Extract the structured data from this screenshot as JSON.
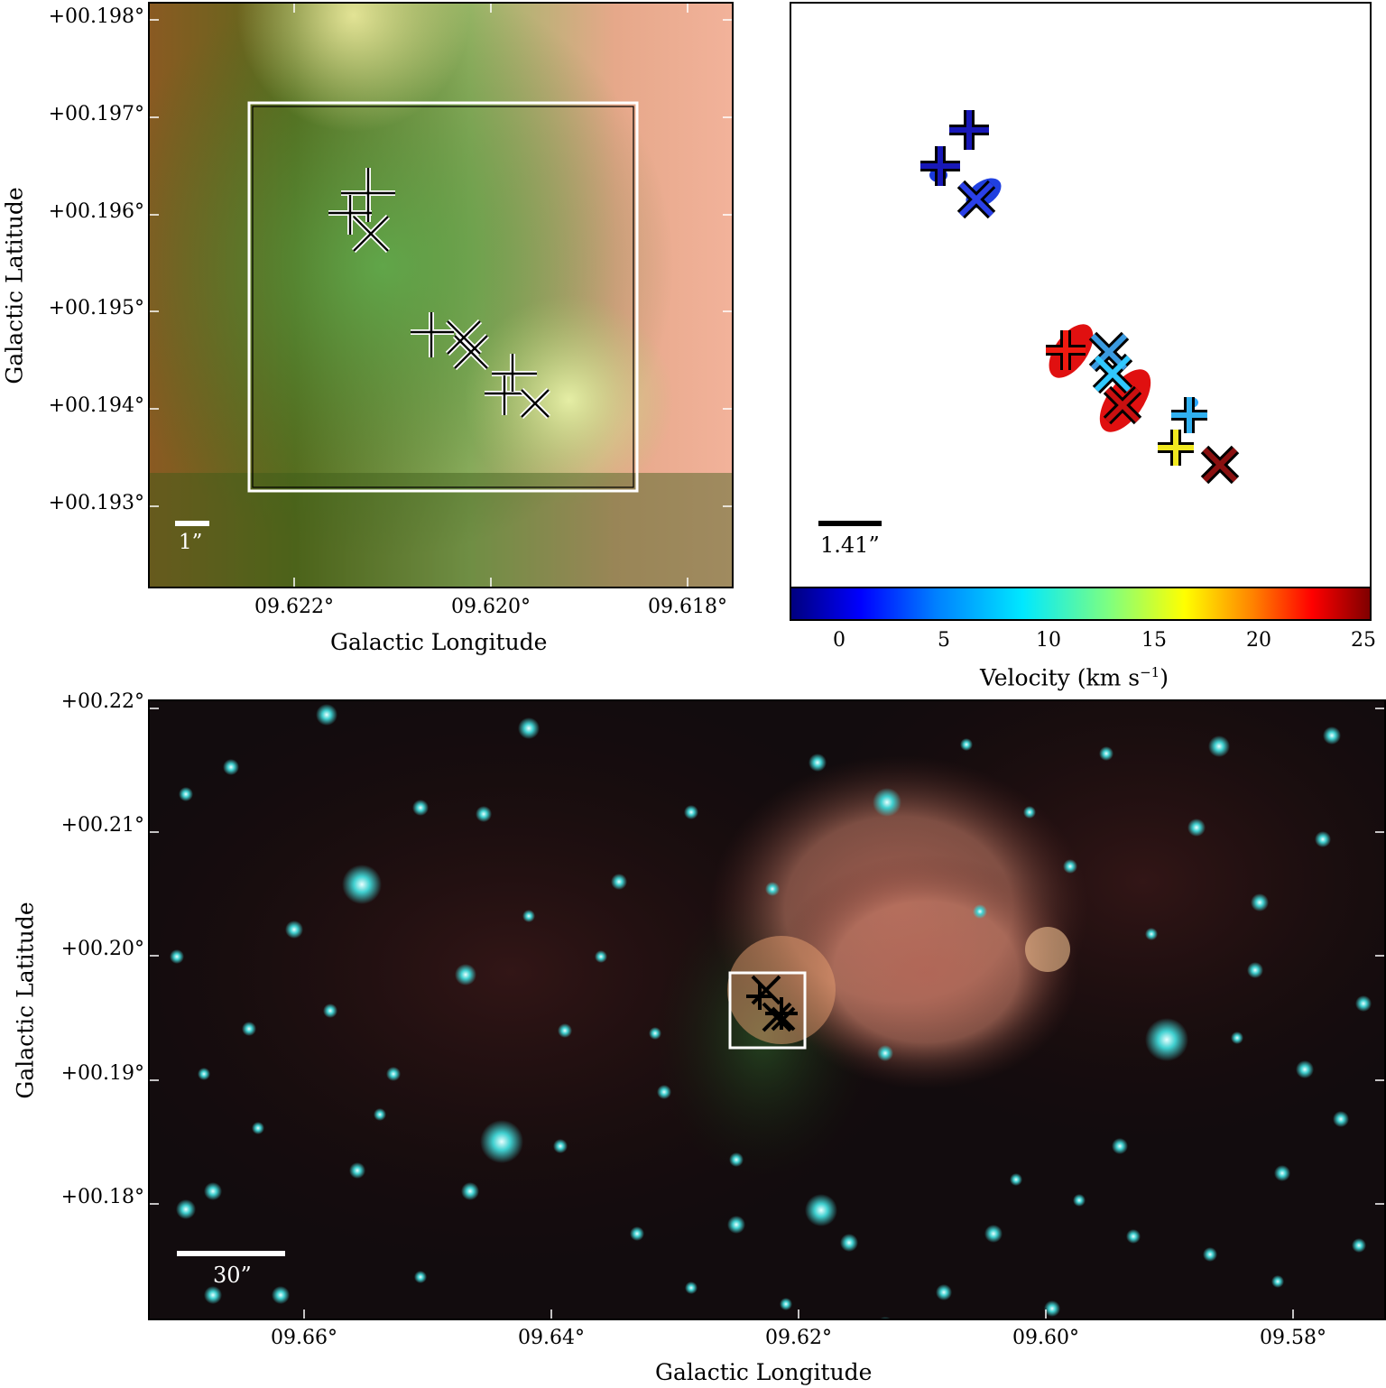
{
  "panels": {
    "top_left": {
      "y_ticks": [
        "+00.198°",
        "+00.197°",
        "+00.196°",
        "+00.195°",
        "+00.194°",
        "+00.193°"
      ],
      "x_ticks": [
        "09.622°",
        "09.620°",
        "09.618°"
      ],
      "xlabel": "Galactic Longitude",
      "ylabel": "Galactic Latitude",
      "scale_bar_label": "1”"
    },
    "top_right": {
      "scale_bar_label": "1.41”",
      "colorbar_ticks": [
        "0",
        "5",
        "10",
        "15",
        "20",
        "25"
      ],
      "colorbar_label": "Velocity (km s",
      "colorbar_label_sup": "−1",
      "colorbar_label_end": ")",
      "colorbar_colors": [
        "#00007f",
        "#0000ff",
        "#00bfff",
        "#7fff7f",
        "#ffff00",
        "#ff8000",
        "#ff0000",
        "#7f0000"
      ]
    },
    "bottom": {
      "y_ticks": [
        "+00.22°",
        "+00.21°",
        "+00.20°",
        "+00.19°",
        "+00.18°"
      ],
      "x_ticks": [
        "09.66°",
        "09.64°",
        "09.62°",
        "09.60°",
        "09.58°"
      ],
      "xlabel": "Galactic Longitude",
      "ylabel": "Galactic Latitude",
      "scale_bar_label": "30”"
    }
  }
}
